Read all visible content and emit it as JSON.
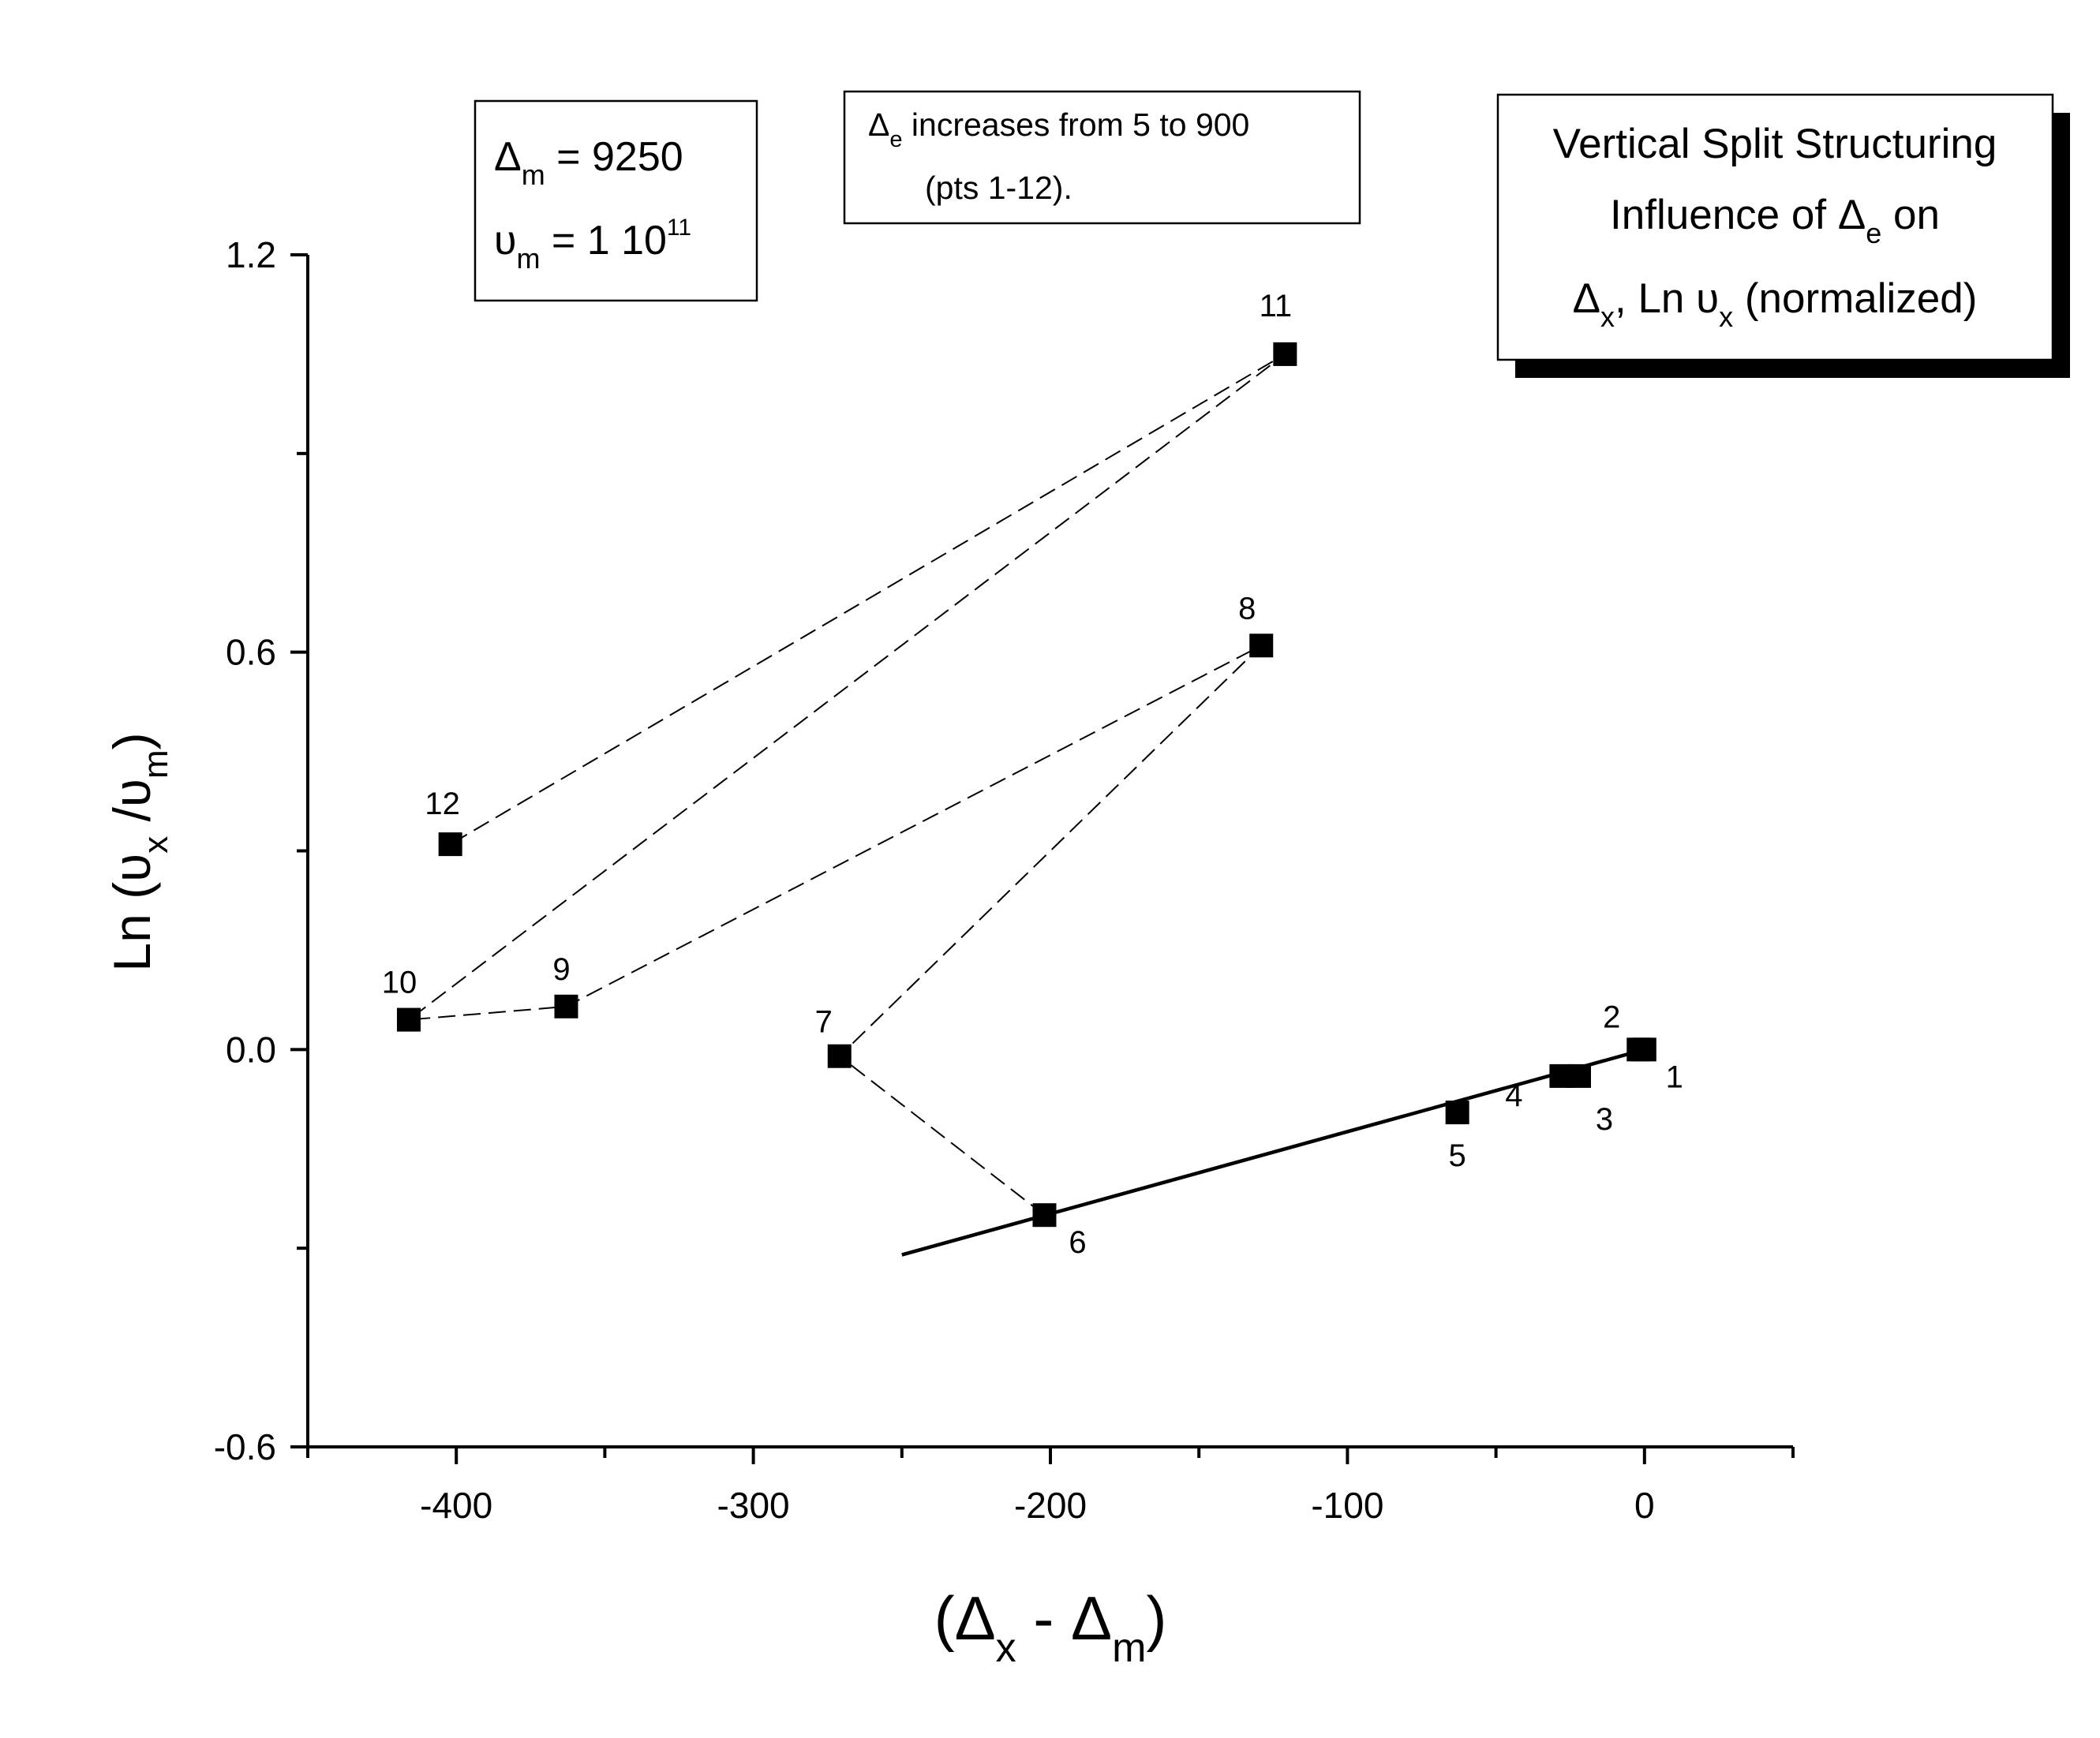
{
  "chart_data": {
    "type": "scatter",
    "xlabel": {
      "prefix": "(",
      "sym1": "Δ",
      "sub1": "x",
      "mid": " - ",
      "sym2": "Δ",
      "sub2": "m",
      "suffix": ")"
    },
    "ylabel": {
      "prefix": "Ln (",
      "sym1": "υ",
      "sub1": "x",
      "mid": " /",
      "sym2": "υ",
      "sub2": "m",
      "suffix": ")"
    },
    "xlim": [
      -450,
      50
    ],
    "ylim": [
      -0.6,
      1.2
    ],
    "x_ticks": [
      -400,
      -300,
      -200,
      -100,
      0
    ],
    "x_tick_labels": [
      "-400",
      "-300",
      "-200",
      "-100",
      "0"
    ],
    "y_ticks": [
      -0.6,
      0.0,
      0.6,
      1.2
    ],
    "y_tick_labels": [
      "-0.6",
      "0.0",
      "0.6",
      "1.2"
    ],
    "points": [
      {
        "label": "1",
        "x": 0,
        "y": 0.0
      },
      {
        "label": "2",
        "x": -2,
        "y": 0.0
      },
      {
        "label": "3",
        "x": -22,
        "y": -0.04
      },
      {
        "label": "4",
        "x": -28,
        "y": -0.04
      },
      {
        "label": "5",
        "x": -63,
        "y": -0.095
      },
      {
        "label": "6",
        "x": -202,
        "y": -0.25
      },
      {
        "label": "7",
        "x": -271,
        "y": -0.01
      },
      {
        "label": "8",
        "x": -129,
        "y": 0.61
      },
      {
        "label": "9",
        "x": -363,
        "y": 0.065
      },
      {
        "label": "10",
        "x": -416,
        "y": 0.045
      },
      {
        "label": "11",
        "x": -121,
        "y": 1.05
      },
      {
        "label": "12",
        "x": -402,
        "y": 0.31
      }
    ],
    "fit_line": {
      "x": [
        -250,
        0
      ],
      "y": [
        -0.31,
        0.0
      ]
    },
    "dashed_path": [
      "6",
      "7",
      "8",
      "9",
      "10",
      "11",
      "12"
    ],
    "annotations": {
      "params_box": {
        "line1": {
          "sym": "Δ",
          "sub": "m",
          "rest": " = 9250"
        },
        "line2": {
          "sym": "υ",
          "sub": "m",
          "rest": " = 1 10",
          "sup": "11"
        }
      },
      "note_box": {
        "line1": {
          "sym": "Δ",
          "sub": "e",
          "rest": " increases from 5 to 900"
        },
        "line2": "(pts 1-12)."
      },
      "title_box": {
        "line1": "Vertical Split Structuring",
        "line2": {
          "pre": "Influence of ",
          "sym": "Δ",
          "sub": "e",
          "post": " on"
        },
        "line3": {
          "sym1": "Δ",
          "sub1": "x",
          "mid": ", Ln ",
          "sym2": "υ",
          "sub2": "x",
          "post": " (normalized)"
        }
      }
    }
  }
}
